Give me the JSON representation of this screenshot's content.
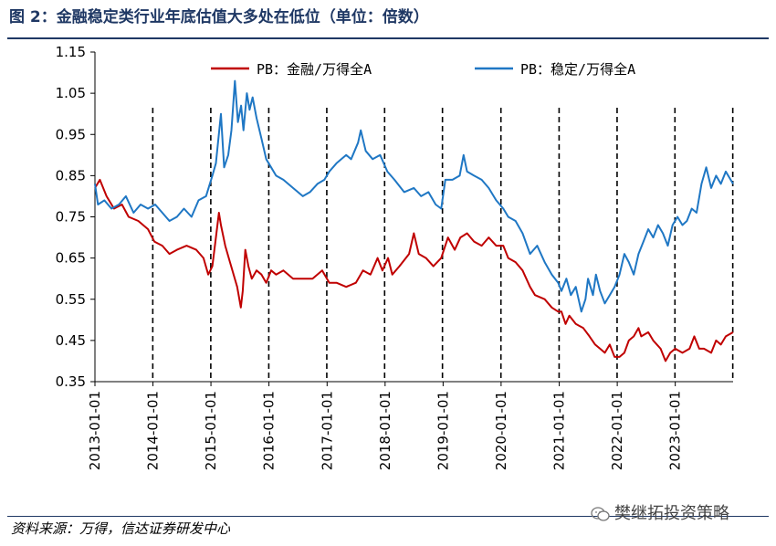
{
  "title": "图 2：金融稳定类行业年底估值大多处在低位（单位：倍数）",
  "source": "资料来源：万得，信达证券研发中心",
  "watermark": "樊继拓投资策略",
  "chart_data": {
    "type": "line",
    "title": "",
    "xlabel": "",
    "ylabel": "",
    "ylim": [
      0.35,
      1.15
    ],
    "yticks": [
      "1.15",
      "1.05",
      "0.95",
      "0.85",
      "0.75",
      "0.65",
      "0.55",
      "0.45",
      "0.35"
    ],
    "xticks": [
      "2013-01-01",
      "2014-01-01",
      "2015-01-01",
      "2016-01-01",
      "2017-01-01",
      "2018-01-01",
      "2019-01-01",
      "2020-01-01",
      "2021-01-01",
      "2022-01-01",
      "2023-01-01"
    ],
    "xlim": [
      "2013-01-01",
      "2023-12-31"
    ],
    "grid": false,
    "legend": "top-center",
    "year_end_markers": [
      "2013-12-31",
      "2014-12-31",
      "2015-12-31",
      "2016-12-30",
      "2017-12-29",
      "2018-12-28",
      "2019-12-31",
      "2020-12-31",
      "2021-12-31",
      "2022-12-30",
      "2023-12-29"
    ],
    "series": [
      {
        "name": "PB：金融/万得全A",
        "color": "#c00000",
        "points": [
          [
            "2013-01-01",
            0.82
          ],
          [
            "2013-02-01",
            0.84
          ],
          [
            "2013-03-15",
            0.8
          ],
          [
            "2013-05-01",
            0.77
          ],
          [
            "2013-06-20",
            0.78
          ],
          [
            "2013-08-01",
            0.75
          ],
          [
            "2013-10-01",
            0.74
          ],
          [
            "2013-12-01",
            0.72
          ],
          [
            "2014-01-10",
            0.69
          ],
          [
            "2014-03-01",
            0.68
          ],
          [
            "2014-04-15",
            0.66
          ],
          [
            "2014-06-01",
            0.67
          ],
          [
            "2014-08-01",
            0.68
          ],
          [
            "2014-10-01",
            0.67
          ],
          [
            "2014-11-15",
            0.65
          ],
          [
            "2014-12-15",
            0.61
          ],
          [
            "2015-01-10",
            0.63
          ],
          [
            "2015-02-01",
            0.7
          ],
          [
            "2015-02-20",
            0.76
          ],
          [
            "2015-03-05",
            0.73
          ],
          [
            "2015-04-01",
            0.68
          ],
          [
            "2015-05-01",
            0.64
          ],
          [
            "2015-06-15",
            0.58
          ],
          [
            "2015-07-08",
            0.53
          ],
          [
            "2015-07-20",
            0.57
          ],
          [
            "2015-08-05",
            0.67
          ],
          [
            "2015-08-25",
            0.63
          ],
          [
            "2015-09-15",
            0.6
          ],
          [
            "2015-10-15",
            0.62
          ],
          [
            "2015-11-15",
            0.61
          ],
          [
            "2015-12-15",
            0.59
          ],
          [
            "2016-01-15",
            0.62
          ],
          [
            "2016-02-15",
            0.61
          ],
          [
            "2016-04-01",
            0.62
          ],
          [
            "2016-06-01",
            0.6
          ],
          [
            "2016-08-01",
            0.6
          ],
          [
            "2016-10-01",
            0.6
          ],
          [
            "2016-12-01",
            0.62
          ],
          [
            "2017-01-15",
            0.59
          ],
          [
            "2017-03-01",
            0.59
          ],
          [
            "2017-05-01",
            0.58
          ],
          [
            "2017-07-01",
            0.59
          ],
          [
            "2017-08-15",
            0.62
          ],
          [
            "2017-10-01",
            0.61
          ],
          [
            "2017-11-15",
            0.65
          ],
          [
            "2017-12-15",
            0.62
          ],
          [
            "2018-01-20",
            0.65
          ],
          [
            "2018-02-15",
            0.61
          ],
          [
            "2018-04-01",
            0.63
          ],
          [
            "2018-06-01",
            0.66
          ],
          [
            "2018-07-01",
            0.71
          ],
          [
            "2018-08-01",
            0.66
          ],
          [
            "2018-09-15",
            0.65
          ],
          [
            "2018-11-01",
            0.63
          ],
          [
            "2018-12-20",
            0.65
          ],
          [
            "2019-02-01",
            0.7
          ],
          [
            "2019-03-15",
            0.67
          ],
          [
            "2019-04-20",
            0.7
          ],
          [
            "2019-06-01",
            0.71
          ],
          [
            "2019-07-15",
            0.69
          ],
          [
            "2019-09-01",
            0.68
          ],
          [
            "2019-10-15",
            0.7
          ],
          [
            "2019-12-01",
            0.68
          ],
          [
            "2020-01-15",
            0.68
          ],
          [
            "2020-02-15",
            0.65
          ],
          [
            "2020-04-01",
            0.64
          ],
          [
            "2020-05-15",
            0.62
          ],
          [
            "2020-07-01",
            0.58
          ],
          [
            "2020-08-01",
            0.56
          ],
          [
            "2020-10-01",
            0.55
          ],
          [
            "2020-11-15",
            0.53
          ],
          [
            "2020-12-25",
            0.52
          ],
          [
            "2021-01-15",
            0.52
          ],
          [
            "2021-02-10",
            0.49
          ],
          [
            "2021-03-05",
            0.51
          ],
          [
            "2021-04-15",
            0.49
          ],
          [
            "2021-06-01",
            0.48
          ],
          [
            "2021-07-10",
            0.46
          ],
          [
            "2021-08-15",
            0.44
          ],
          [
            "2021-09-15",
            0.43
          ],
          [
            "2021-10-15",
            0.42
          ],
          [
            "2021-11-15",
            0.44
          ],
          [
            "2021-12-15",
            0.41
          ],
          [
            "2022-01-15",
            0.41
          ],
          [
            "2022-02-15",
            0.42
          ],
          [
            "2022-03-15",
            0.45
          ],
          [
            "2022-04-15",
            0.46
          ],
          [
            "2022-05-15",
            0.48
          ],
          [
            "2022-06-01",
            0.46
          ],
          [
            "2022-07-15",
            0.47
          ],
          [
            "2022-08-15",
            0.45
          ],
          [
            "2022-10-01",
            0.43
          ],
          [
            "2022-11-01",
            0.4
          ],
          [
            "2022-12-01",
            0.42
          ],
          [
            "2023-01-01",
            0.43
          ],
          [
            "2023-02-15",
            0.42
          ],
          [
            "2023-04-01",
            0.43
          ],
          [
            "2023-05-01",
            0.46
          ],
          [
            "2023-06-01",
            0.43
          ],
          [
            "2023-07-01",
            0.43
          ],
          [
            "2023-08-15",
            0.42
          ],
          [
            "2023-09-15",
            0.45
          ],
          [
            "2023-10-15",
            0.44
          ],
          [
            "2023-11-15",
            0.46
          ],
          [
            "2023-12-31",
            0.47
          ]
        ]
      },
      {
        "name": "PB：稳定/万得全A",
        "color": "#1f77c4",
        "points": [
          [
            "2013-01-01",
            0.83
          ],
          [
            "2013-01-20",
            0.78
          ],
          [
            "2013-03-01",
            0.79
          ],
          [
            "2013-04-15",
            0.77
          ],
          [
            "2013-06-01",
            0.78
          ],
          [
            "2013-07-15",
            0.8
          ],
          [
            "2013-09-01",
            0.76
          ],
          [
            "2013-10-15",
            0.78
          ],
          [
            "2013-12-01",
            0.77
          ],
          [
            "2014-01-15",
            0.78
          ],
          [
            "2014-03-01",
            0.76
          ],
          [
            "2014-04-15",
            0.74
          ],
          [
            "2014-06-01",
            0.75
          ],
          [
            "2014-07-15",
            0.77
          ],
          [
            "2014-09-01",
            0.75
          ],
          [
            "2014-10-15",
            0.79
          ],
          [
            "2014-12-01",
            0.8
          ],
          [
            "2015-01-10",
            0.85
          ],
          [
            "2015-02-01",
            0.88
          ],
          [
            "2015-03-05",
            1.0
          ],
          [
            "2015-03-25",
            0.87
          ],
          [
            "2015-04-20",
            0.9
          ],
          [
            "2015-05-10",
            0.96
          ],
          [
            "2015-06-01",
            1.08
          ],
          [
            "2015-06-20",
            0.98
          ],
          [
            "2015-07-10",
            1.02
          ],
          [
            "2015-07-25",
            0.96
          ],
          [
            "2015-08-15",
            1.05
          ],
          [
            "2015-09-01",
            1.01
          ],
          [
            "2015-09-20",
            1.04
          ],
          [
            "2015-10-15",
            0.99
          ],
          [
            "2015-11-15",
            0.94
          ],
          [
            "2015-12-15",
            0.89
          ],
          [
            "2016-01-15",
            0.87
          ],
          [
            "2016-02-15",
            0.85
          ],
          [
            "2016-04-01",
            0.84
          ],
          [
            "2016-06-01",
            0.82
          ],
          [
            "2016-08-01",
            0.8
          ],
          [
            "2016-09-15",
            0.81
          ],
          [
            "2016-11-01",
            0.83
          ],
          [
            "2016-12-15",
            0.84
          ],
          [
            "2017-01-15",
            0.86
          ],
          [
            "2017-03-01",
            0.88
          ],
          [
            "2017-05-01",
            0.9
          ],
          [
            "2017-06-01",
            0.89
          ],
          [
            "2017-07-15",
            0.93
          ],
          [
            "2017-08-01",
            0.96
          ],
          [
            "2017-09-01",
            0.91
          ],
          [
            "2017-10-15",
            0.89
          ],
          [
            "2017-12-01",
            0.9
          ],
          [
            "2018-01-15",
            0.86
          ],
          [
            "2018-03-01",
            0.84
          ],
          [
            "2018-05-01",
            0.81
          ],
          [
            "2018-07-01",
            0.82
          ],
          [
            "2018-08-15",
            0.8
          ],
          [
            "2018-10-01",
            0.81
          ],
          [
            "2018-11-15",
            0.78
          ],
          [
            "2018-12-20",
            0.77
          ],
          [
            "2019-01-15",
            0.84
          ],
          [
            "2019-03-01",
            0.84
          ],
          [
            "2019-04-15",
            0.85
          ],
          [
            "2019-05-10",
            0.9
          ],
          [
            "2019-06-01",
            0.86
          ],
          [
            "2019-07-15",
            0.85
          ],
          [
            "2019-09-01",
            0.84
          ],
          [
            "2019-10-15",
            0.82
          ],
          [
            "2019-12-01",
            0.79
          ],
          [
            "2020-01-15",
            0.77
          ],
          [
            "2020-02-15",
            0.75
          ],
          [
            "2020-04-01",
            0.74
          ],
          [
            "2020-05-15",
            0.71
          ],
          [
            "2020-07-01",
            0.66
          ],
          [
            "2020-08-15",
            0.68
          ],
          [
            "2020-10-01",
            0.64
          ],
          [
            "2020-11-15",
            0.61
          ],
          [
            "2020-12-25",
            0.59
          ],
          [
            "2021-01-15",
            0.57
          ],
          [
            "2021-02-15",
            0.6
          ],
          [
            "2021-03-15",
            0.56
          ],
          [
            "2021-04-15",
            0.58
          ],
          [
            "2021-05-20",
            0.52
          ],
          [
            "2021-06-15",
            0.55
          ],
          [
            "2021-07-01",
            0.6
          ],
          [
            "2021-08-01",
            0.56
          ],
          [
            "2021-08-20",
            0.61
          ],
          [
            "2021-09-15",
            0.57
          ],
          [
            "2021-10-15",
            0.54
          ],
          [
            "2021-11-15",
            0.56
          ],
          [
            "2021-12-15",
            0.58
          ],
          [
            "2022-01-15",
            0.61
          ],
          [
            "2022-02-15",
            0.66
          ],
          [
            "2022-03-15",
            0.64
          ],
          [
            "2022-04-15",
            0.61
          ],
          [
            "2022-05-15",
            0.66
          ],
          [
            "2022-06-15",
            0.69
          ],
          [
            "2022-07-15",
            0.72
          ],
          [
            "2022-08-15",
            0.7
          ],
          [
            "2022-09-15",
            0.73
          ],
          [
            "2022-10-15",
            0.71
          ],
          [
            "2022-11-15",
            0.68
          ],
          [
            "2022-12-15",
            0.73
          ],
          [
            "2023-01-15",
            0.75
          ],
          [
            "2023-02-15",
            0.73
          ],
          [
            "2023-03-15",
            0.74
          ],
          [
            "2023-04-15",
            0.77
          ],
          [
            "2023-05-15",
            0.76
          ],
          [
            "2023-06-15",
            0.83
          ],
          [
            "2023-07-15",
            0.87
          ],
          [
            "2023-08-15",
            0.82
          ],
          [
            "2023-09-15",
            0.85
          ],
          [
            "2023-10-15",
            0.83
          ],
          [
            "2023-11-15",
            0.86
          ],
          [
            "2023-12-31",
            0.83
          ]
        ]
      }
    ]
  }
}
